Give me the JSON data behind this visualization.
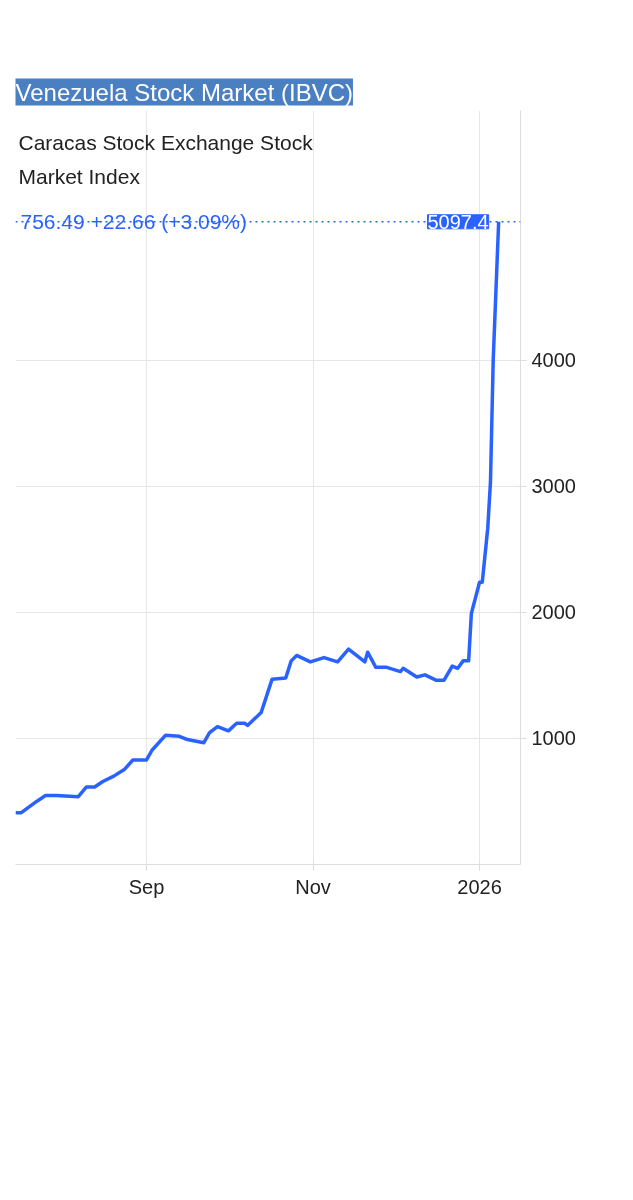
{
  "chart_data": {
    "type": "line",
    "title": "Venezuela Stock Market (IBVC)",
    "subtitle": "Caracas Stock Exchange Stock Market Index",
    "x": [
      "2025-07-15",
      "2025-07-17",
      "2025-07-23",
      "2025-07-26",
      "2025-07-30",
      "2025-08-07",
      "2025-08-10",
      "2025-08-13",
      "2025-08-16",
      "2025-08-20",
      "2025-08-24",
      "2025-08-27",
      "2025-09-01",
      "2025-09-03",
      "2025-09-08",
      "2025-09-13",
      "2025-09-16",
      "2025-09-22",
      "2025-09-24",
      "2025-09-27",
      "2025-10-01",
      "2025-10-04",
      "2025-10-07",
      "2025-10-08",
      "2025-10-13",
      "2025-10-17",
      "2025-10-22",
      "2025-10-24",
      "2025-10-26",
      "2025-10-31",
      "2025-11-05",
      "2025-11-10",
      "2025-11-14",
      "2025-11-20",
      "2025-11-21",
      "2025-11-24",
      "2025-11-28",
      "2025-12-03",
      "2025-12-04",
      "2025-12-09",
      "2025-12-12",
      "2025-12-16",
      "2025-12-19",
      "2025-12-22",
      "2025-12-24",
      "2025-12-26",
      "2025-12-28",
      "2025-12-29",
      "2026-01-01",
      "2026-01-02",
      "2026-01-04",
      "2026-01-05",
      "2026-01-06",
      "2026-01-08"
    ],
    "series": [
      {
        "color": "#2962ff",
        "values": [
          410,
          410,
          504,
          547,
          547,
          538,
          615,
          615,
          658,
          701,
          756,
          829,
          829,
          906,
          1026,
          1017,
          991,
          966,
          1043,
          1094,
          1060,
          1120,
          1120,
          1103,
          1205,
          1470,
          1479,
          1615,
          1658,
          1607,
          1641,
          1607,
          1709,
          1607,
          1684,
          1564,
          1564,
          1530,
          1556,
          1487,
          1504,
          1462,
          1462,
          1573,
          1556,
          1615,
          1615,
          1991,
          2239,
          2239,
          2667,
          3034,
          4000,
          5097.4
        ]
      }
    ],
    "xlim": [
      "2025-07-15",
      "2026-01-16"
    ],
    "xticks": [
      {
        "value": "2025-09-01",
        "label": "Sep"
      },
      {
        "value": "2025-11-01",
        "label": "Nov"
      },
      {
        "value": "2026-01-01",
        "label": "2026"
      }
    ],
    "ylim": [
      0,
      5980
    ],
    "yticks": [
      1000,
      2000,
      3000,
      4000
    ],
    "ref_lines": [
      {
        "axis": "y",
        "value": 5097.4,
        "label": "5097.4",
        "color": "#2962ff",
        "line_style": "dotted"
      }
    ],
    "annotations": [
      "756.49 +22.66 (+3.09%)"
    ],
    "grid": true,
    "marker": "none",
    "line_style": "solid"
  }
}
